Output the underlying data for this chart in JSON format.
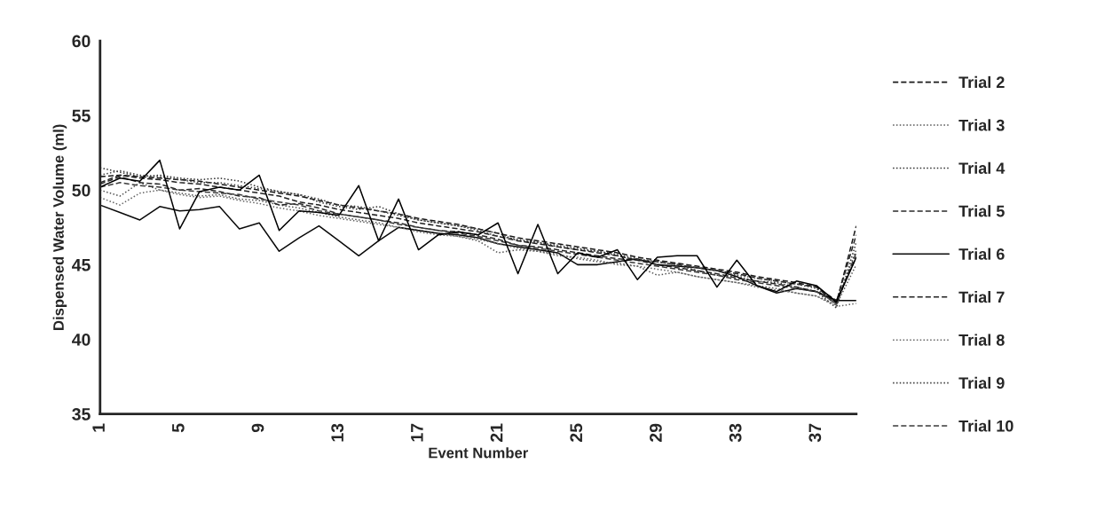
{
  "chart_data": {
    "type": "line",
    "xlabel": "Event Number",
    "ylabel": "Dispensed Water Volume (ml)",
    "categories": [
      "1",
      null,
      null,
      null,
      "5",
      null,
      null,
      null,
      "9",
      null,
      null,
      null,
      "13",
      null,
      null,
      null,
      "17",
      null,
      null,
      null,
      "21",
      null,
      null,
      null,
      "25",
      null,
      null,
      null,
      "29",
      null,
      null,
      null,
      "33",
      null,
      null,
      null,
      "37",
      null,
      null
    ],
    "ylim": [
      35,
      60
    ],
    "yticks": [
      35,
      40,
      45,
      50,
      55,
      60
    ],
    "grid": false,
    "legend": "right",
    "marker": "none",
    "series": [
      {
        "name": "Trial 2",
        "color": "#1a1a1a",
        "line_style": "dashed",
        "values": [
          50.9,
          51.0,
          50.9,
          50.8,
          50.7,
          50.6,
          50.4,
          50.2,
          50.0,
          49.8,
          49.6,
          49.3,
          49.0,
          48.8,
          48.6,
          48.4,
          48.1,
          47.9,
          47.7,
          47.4,
          47.1,
          46.8,
          46.6,
          46.4,
          46.2,
          46.0,
          45.8,
          45.5,
          45.3,
          45.1,
          44.9,
          44.7,
          44.5,
          44.2,
          44.0,
          43.8,
          43.5,
          42.4,
          47.6
        ]
      },
      {
        "name": "Trial 3",
        "color": "#555555",
        "line_style": "dotted",
        "values": [
          50.0,
          49.6,
          50.5,
          50.0,
          49.8,
          49.6,
          49.7,
          49.4,
          49.3,
          49.0,
          48.8,
          48.5,
          48.2,
          48.0,
          47.8,
          47.5,
          47.3,
          47.1,
          46.9,
          46.6,
          45.8,
          46.0,
          45.9,
          45.7,
          45.4,
          45.2,
          45.1,
          44.9,
          44.3,
          44.5,
          44.2,
          44.0,
          43.8,
          43.6,
          43.4,
          43.1,
          42.9,
          42.3,
          45.0
        ]
      },
      {
        "name": "Trial 4",
        "color": "#333333",
        "line_style": "dotted",
        "values": [
          51.5,
          51.2,
          50.9,
          51.0,
          50.8,
          50.7,
          50.8,
          50.6,
          50.2,
          49.9,
          49.7,
          49.2,
          48.9,
          48.7,
          48.9,
          48.4,
          48.0,
          47.8,
          47.6,
          47.4,
          47.1,
          46.6,
          46.5,
          46.2,
          46.0,
          45.9,
          45.6,
          45.3,
          45.2,
          45.0,
          44.6,
          44.3,
          44.2,
          43.9,
          43.8,
          43.5,
          43.2,
          42.1,
          46.5
        ]
      },
      {
        "name": "Trial 5",
        "color": "#2a2a2a",
        "line_style": "dashed",
        "values": [
          50.4,
          50.9,
          50.5,
          50.4,
          50.0,
          50.1,
          49.9,
          49.6,
          49.5,
          49.0,
          49.1,
          48.8,
          48.4,
          48.2,
          48.0,
          47.8,
          47.5,
          47.3,
          47.2,
          47.0,
          46.7,
          46.3,
          46.2,
          46.0,
          45.8,
          45.6,
          45.4,
          45.3,
          45.0,
          44.8,
          44.6,
          44.4,
          44.1,
          43.9,
          43.7,
          43.5,
          43.2,
          42.5,
          47.0
        ]
      },
      {
        "name": "Trial 6",
        "color": "#0a0a0a",
        "line_style": "solid",
        "values": [
          49.0,
          48.5,
          48.0,
          48.9,
          48.6,
          48.7,
          48.9,
          47.4,
          47.8,
          45.9,
          46.8,
          47.6,
          46.6,
          45.6,
          46.6,
          47.5,
          47.3,
          47.1,
          47.0,
          46.8,
          46.4,
          46.2,
          46.0,
          45.8,
          45.0,
          45.0,
          45.2,
          45.4,
          45.0,
          44.9,
          44.8,
          44.6,
          44.2,
          43.6,
          43.1,
          43.4,
          43.2,
          42.6,
          42.6
        ]
      },
      {
        "name": "Trial 7",
        "color": "#222222",
        "line_style": "dashed",
        "values": [
          50.5,
          51.0,
          50.8,
          50.7,
          50.5,
          50.4,
          50.2,
          50.0,
          49.8,
          49.6,
          49.2,
          49.0,
          48.7,
          48.5,
          48.3,
          48.1,
          47.8,
          47.6,
          47.4,
          47.2,
          46.9,
          46.6,
          46.4,
          46.2,
          46.0,
          45.8,
          45.6,
          45.3,
          45.2,
          45.0,
          44.8,
          44.6,
          44.4,
          44.1,
          43.9,
          43.7,
          43.5,
          42.6,
          45.5
        ]
      },
      {
        "name": "Trial 8",
        "color": "#666666",
        "line_style": "dotted",
        "values": [
          49.5,
          49.0,
          49.8,
          50.0,
          49.7,
          49.5,
          49.6,
          49.3,
          49.1,
          48.8,
          48.6,
          48.3,
          48.1,
          47.9,
          47.7,
          47.5,
          47.2,
          47.0,
          46.9,
          46.7,
          46.4,
          46.1,
          45.9,
          45.6,
          45.5,
          45.3,
          45.0,
          44.9,
          44.7,
          44.5,
          44.2,
          44.0,
          43.8,
          43.5,
          43.3,
          43.1,
          42.9,
          42.2,
          42.4
        ]
      },
      {
        "name": "Trial 9",
        "color": "#444444",
        "line_style": "dotted",
        "values": [
          51.0,
          51.3,
          51.0,
          50.9,
          50.7,
          50.5,
          50.5,
          50.3,
          50.1,
          49.9,
          49.7,
          49.4,
          49.0,
          48.9,
          48.6,
          48.3,
          48.0,
          47.8,
          47.6,
          47.3,
          46.9,
          46.7,
          46.5,
          46.3,
          46.1,
          45.9,
          45.7,
          45.4,
          45.2,
          45.0,
          44.8,
          44.6,
          44.3,
          44.1,
          43.9,
          43.7,
          43.4,
          42.3,
          46.0
        ]
      },
      {
        "name": "Trial 10",
        "color": "#3b3b3b",
        "line_style": "dashed",
        "values": [
          50.2,
          50.5,
          50.3,
          50.2,
          50.0,
          49.9,
          49.8,
          49.7,
          49.4,
          49.2,
          49.0,
          48.6,
          48.4,
          48.2,
          48.0,
          47.7,
          47.5,
          47.3,
          47.1,
          46.9,
          46.6,
          46.3,
          46.1,
          45.9,
          45.7,
          45.5,
          45.3,
          45.1,
          44.9,
          44.7,
          44.5,
          44.3,
          44.0,
          43.8,
          43.6,
          43.4,
          43.2,
          42.4,
          45.8
        ]
      },
      {
        "color": "#000000",
        "line_style": "solid",
        "values": [
          50.2,
          50.8,
          50.6,
          52.0,
          47.4,
          49.9,
          50.2,
          50.0,
          51.0,
          47.3,
          48.6,
          48.5,
          48.3,
          50.3,
          46.6,
          49.4,
          46.0,
          47.0,
          47.2,
          47.0,
          47.8,
          44.4,
          47.7,
          44.4,
          45.8,
          45.5,
          46.0,
          44.0,
          45.5,
          45.6,
          45.6,
          43.5,
          45.3,
          43.6,
          43.2,
          43.9,
          43.6,
          42.5,
          45.5
        ]
      }
    ]
  }
}
